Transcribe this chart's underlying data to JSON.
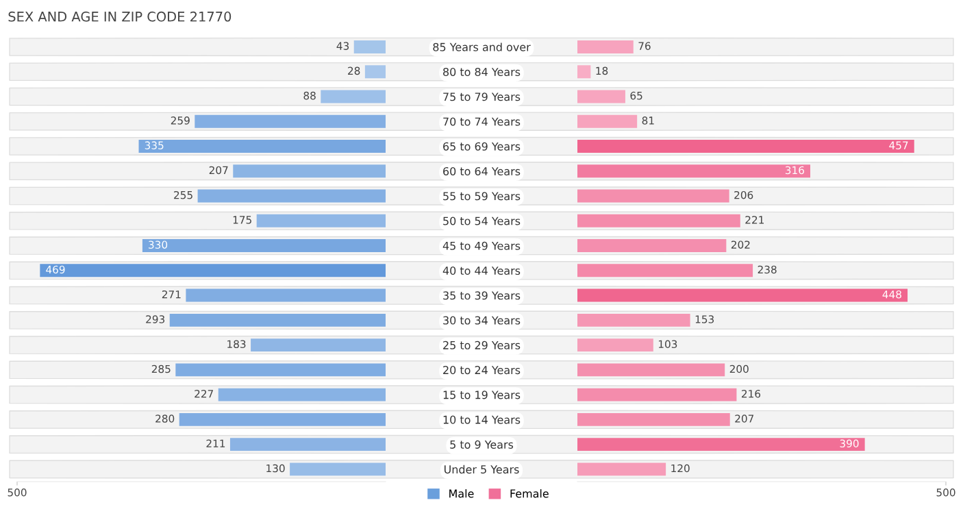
{
  "chart_data": [
    {
      "type": "bar",
      "orientation": "horizontal",
      "title": "SEX AND AGE IN ZIP CODE 21770",
      "categories": [
        "85 Years and over",
        "80 to 84 Years",
        "75 to 79 Years",
        "70 to 74 Years",
        "65 to 69 Years",
        "60 to 64 Years",
        "55 to 59 Years",
        "50 to 54 Years",
        "45 to 49 Years",
        "40 to 44 Years",
        "35 to 39 Years",
        "30 to 34 Years",
        "25 to 29 Years",
        "20 to 24 Years",
        "15 to 19 Years",
        "10 to 14 Years",
        "5 to 9 Years",
        "Under 5 Years"
      ],
      "series": [
        {
          "name": "Male",
          "color": "#6a9fdc",
          "values": [
            43,
            28,
            88,
            259,
            335,
            207,
            255,
            175,
            330,
            469,
            271,
            293,
            183,
            285,
            227,
            280,
            211,
            130
          ],
          "colors": [
            "#a4c5ea",
            "#a7c6eb",
            "#9dc0e9",
            "#83aee3",
            "#78a7e0",
            "#8bb4e4",
            "#84afe3",
            "#90b7e6",
            "#78a7e0",
            "#6399db",
            "#81ade2",
            "#7eabe1",
            "#8fb6e5",
            "#7face2",
            "#88b2e4",
            "#80ace2",
            "#8bb3e4",
            "#97bce7"
          ]
        }
      ],
      "xlim": [
        500,
        0
      ],
      "xticks": [
        500
      ],
      "data_labels": true,
      "legend": "bottom right",
      "grid": false
    },
    {
      "type": "bar",
      "orientation": "horizontal",
      "series": [
        {
          "name": "Female",
          "color": "#f07099",
          "values": [
            76,
            18,
            65,
            81,
            457,
            316,
            206,
            221,
            202,
            238,
            448,
            153,
            103,
            200,
            216,
            207,
            390,
            120
          ],
          "colors": [
            "#f7a3be",
            "#f8adc5",
            "#f7a5bf",
            "#f7a3bd",
            "#f0648e",
            "#f27ba0",
            "#f48ead",
            "#f48bab",
            "#f48eae",
            "#f488a9",
            "#f0668f",
            "#f597b4",
            "#f69fba",
            "#f48fae",
            "#f48cac",
            "#f48ead",
            "#f16f96",
            "#f69cb8"
          ]
        }
      ],
      "xlim": [
        0,
        500
      ],
      "xticks": [
        500
      ],
      "tick_labels": "x",
      "data_labels": true,
      "legend": "bottom left",
      "grid": false
    }
  ]
}
